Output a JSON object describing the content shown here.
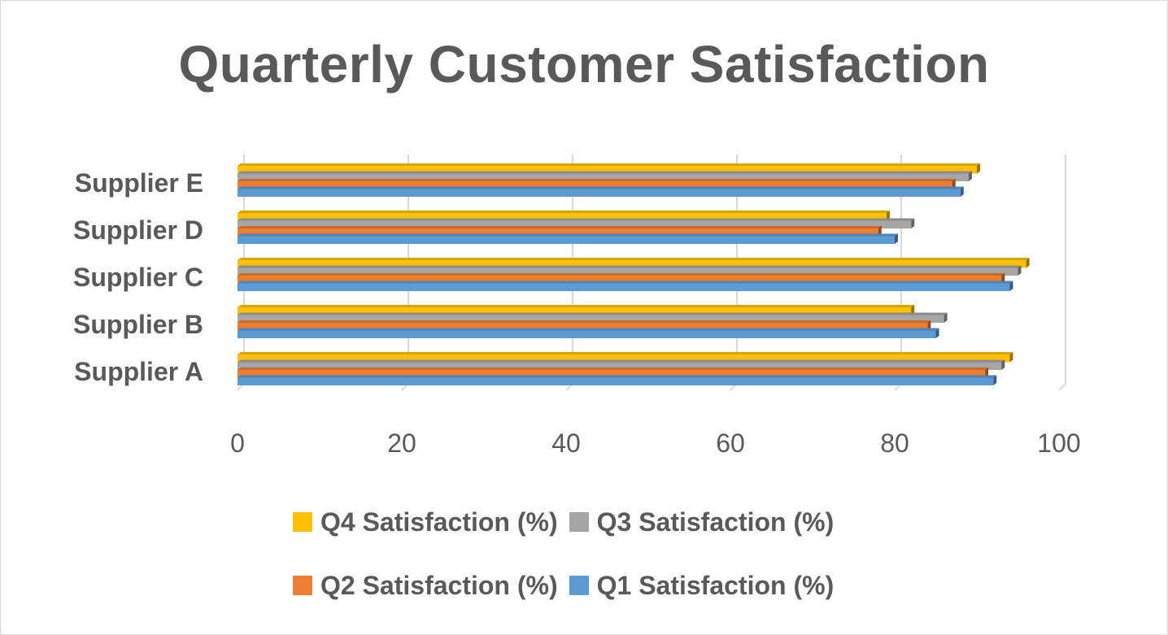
{
  "chart_data": {
    "type": "bar",
    "orientation": "horizontal",
    "title": "Quarterly Customer Satisfaction",
    "categories": [
      "Supplier A",
      "Supplier B",
      "Supplier C",
      "Supplier D",
      "Supplier E"
    ],
    "series": [
      {
        "name": "Q1 Satisfaction (%)",
        "color": "#5b9bd5",
        "values": [
          92,
          85,
          94,
          80,
          88
        ]
      },
      {
        "name": "Q2 Satisfaction (%)",
        "color": "#ed7d31",
        "values": [
          91,
          84,
          93,
          78,
          87
        ]
      },
      {
        "name": "Q3 Satisfaction (%)",
        "color": "#a5a5a5",
        "values": [
          93,
          86,
          95,
          82,
          89
        ]
      },
      {
        "name": "Q4 Satisfaction (%)",
        "color": "#ffc000",
        "values": [
          94,
          82,
          96,
          79,
          90
        ]
      }
    ],
    "xlim": [
      0,
      100
    ],
    "xticks": [
      "0",
      "20",
      "40",
      "60",
      "80",
      "100"
    ],
    "grid": true,
    "legend_position": "bottom"
  }
}
